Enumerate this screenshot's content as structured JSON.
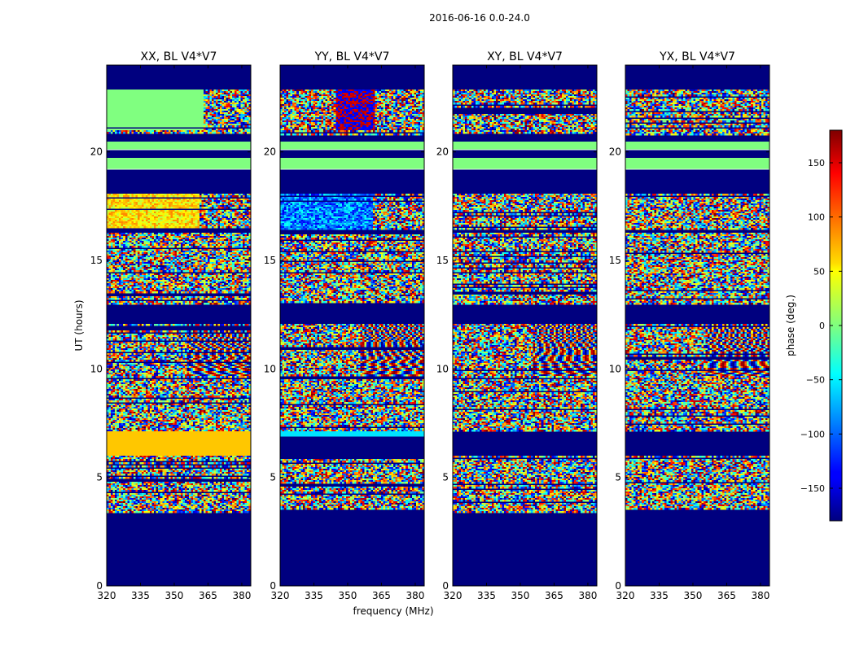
{
  "figure": {
    "suptitle": "2016-06-16 0.0-24.0",
    "shared_xlabel": "frequency (MHz)",
    "shared_ylabel": "UT (hours)"
  },
  "chart_data": [
    {
      "type": "heatmap",
      "title": "XX, BL V4*V7",
      "xlabel": "frequency (MHz)",
      "ylabel": "UT (hours)",
      "xlim": [
        320,
        384
      ],
      "ylim": [
        0,
        24
      ],
      "xticks": [
        320,
        335,
        350,
        365,
        380
      ],
      "yticks": [
        0,
        5,
        10,
        15,
        20
      ],
      "colormap": "jet",
      "value_range": [
        -180,
        180
      ]
    },
    {
      "type": "heatmap",
      "title": "YY, BL V4*V7",
      "xlabel": "frequency (MHz)",
      "ylabel": "",
      "xlim": [
        320,
        384
      ],
      "ylim": [
        0,
        24
      ],
      "xticks": [
        320,
        335,
        350,
        365,
        380
      ],
      "yticks": [
        0,
        5,
        10,
        15,
        20
      ],
      "colormap": "jet",
      "value_range": [
        -180,
        180
      ]
    },
    {
      "type": "heatmap",
      "title": "XY, BL V4*V7",
      "xlabel": "",
      "ylabel": "",
      "xlim": [
        320,
        384
      ],
      "ylim": [
        0,
        24
      ],
      "xticks": [
        320,
        335,
        350,
        365,
        380
      ],
      "yticks": [
        0,
        5,
        10,
        15,
        20
      ],
      "colormap": "jet",
      "value_range": [
        -180,
        180
      ]
    },
    {
      "type": "heatmap",
      "title": "YX, BL V4*V7",
      "xlabel": "",
      "ylabel": "",
      "xlim": [
        320,
        384
      ],
      "ylim": [
        0,
        24
      ],
      "xticks": [
        320,
        335,
        350,
        365,
        380
      ],
      "yticks": [
        0,
        5,
        10,
        15,
        20
      ],
      "colormap": "jet",
      "value_range": [
        -180,
        180
      ]
    }
  ],
  "colorbar": {
    "label": "phase (deg.)",
    "ticks": [
      150,
      100,
      50,
      0,
      -50,
      -100,
      -150
    ],
    "tick_labels": [
      "150",
      "100",
      "50",
      "0",
      "−50",
      "−100",
      "−150"
    ],
    "range": [
      -180,
      180
    ],
    "colormap": "jet"
  },
  "colors": {
    "no_data": "#00007f",
    "flat_green": "#7fff7f",
    "white_line": "#ffffff"
  }
}
